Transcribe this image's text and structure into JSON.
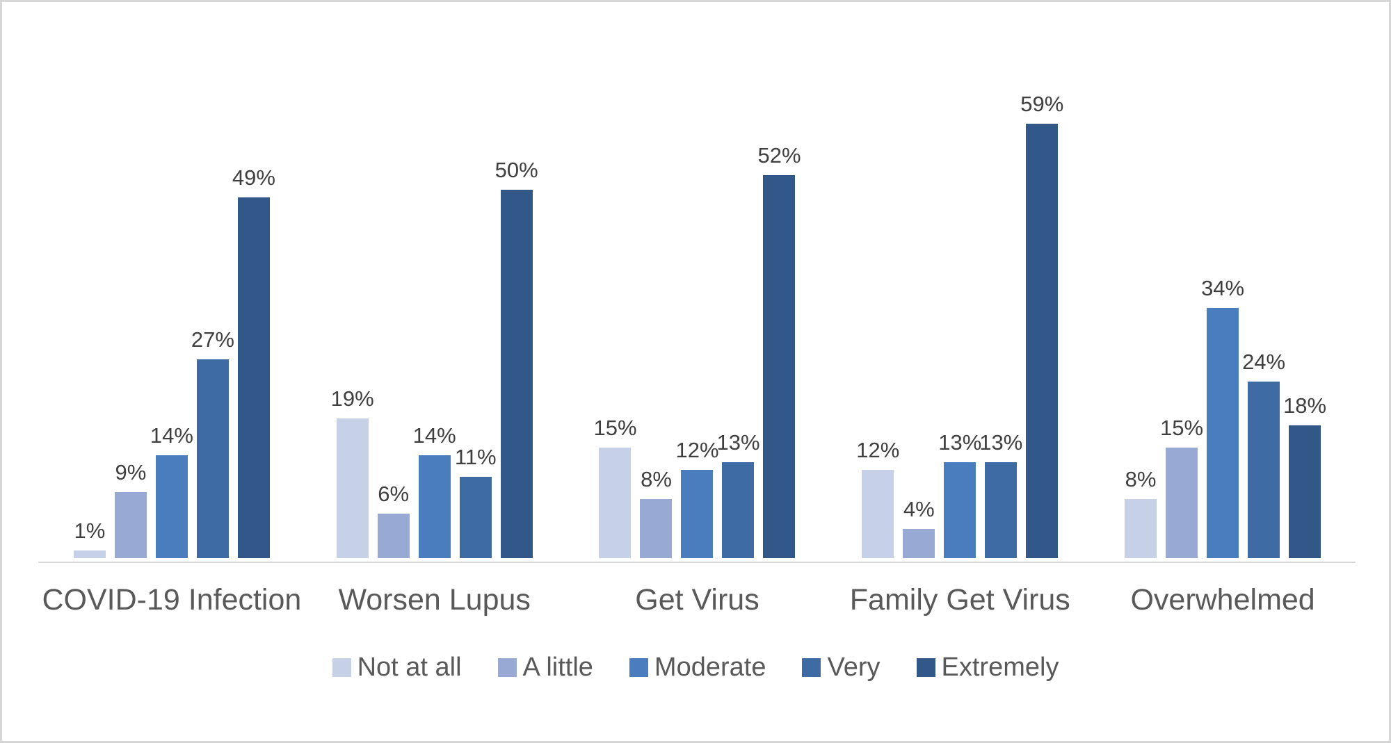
{
  "chart_data": {
    "type": "bar",
    "title": "",
    "categories": [
      "COVID-19 Infection",
      "Worsen Lupus",
      "Get Virus",
      "Family Get Virus",
      "Overwhelmed"
    ],
    "series": [
      {
        "name": "Not at all",
        "color": "#c6d0e6",
        "values": [
          1,
          19,
          15,
          12,
          8
        ],
        "labels": [
          "1%",
          "19%",
          "15%",
          "12%",
          "8%"
        ]
      },
      {
        "name": "A little",
        "color": "#98a9d4",
        "values": [
          9,
          6,
          8,
          4,
          15
        ],
        "labels": [
          "9%",
          "6%",
          "8%",
          "4%",
          "15%"
        ]
      },
      {
        "name": "Moderate",
        "color": "#4a7dbd",
        "values": [
          14,
          14,
          12,
          13,
          34
        ],
        "labels": [
          "14%",
          "14%",
          "12%",
          "13%",
          "34%"
        ]
      },
      {
        "name": "Very",
        "color": "#3e6ba4",
        "values": [
          27,
          11,
          13,
          13,
          24
        ],
        "labels": [
          "27%",
          "11%",
          "13%",
          "13%",
          "24%"
        ]
      },
      {
        "name": "Extremely",
        "color": "#32588a",
        "values": [
          49,
          50,
          52,
          59,
          18
        ],
        "labels": [
          "49%",
          "50%",
          "52%",
          "59%",
          "18%"
        ]
      }
    ],
    "ylim": [
      0,
      65
    ],
    "grid": false,
    "legend_position": "bottom",
    "axis_line_color": "#d9d9d9",
    "data_label_color": "#3f3f3f",
    "category_label_color": "#595959"
  }
}
